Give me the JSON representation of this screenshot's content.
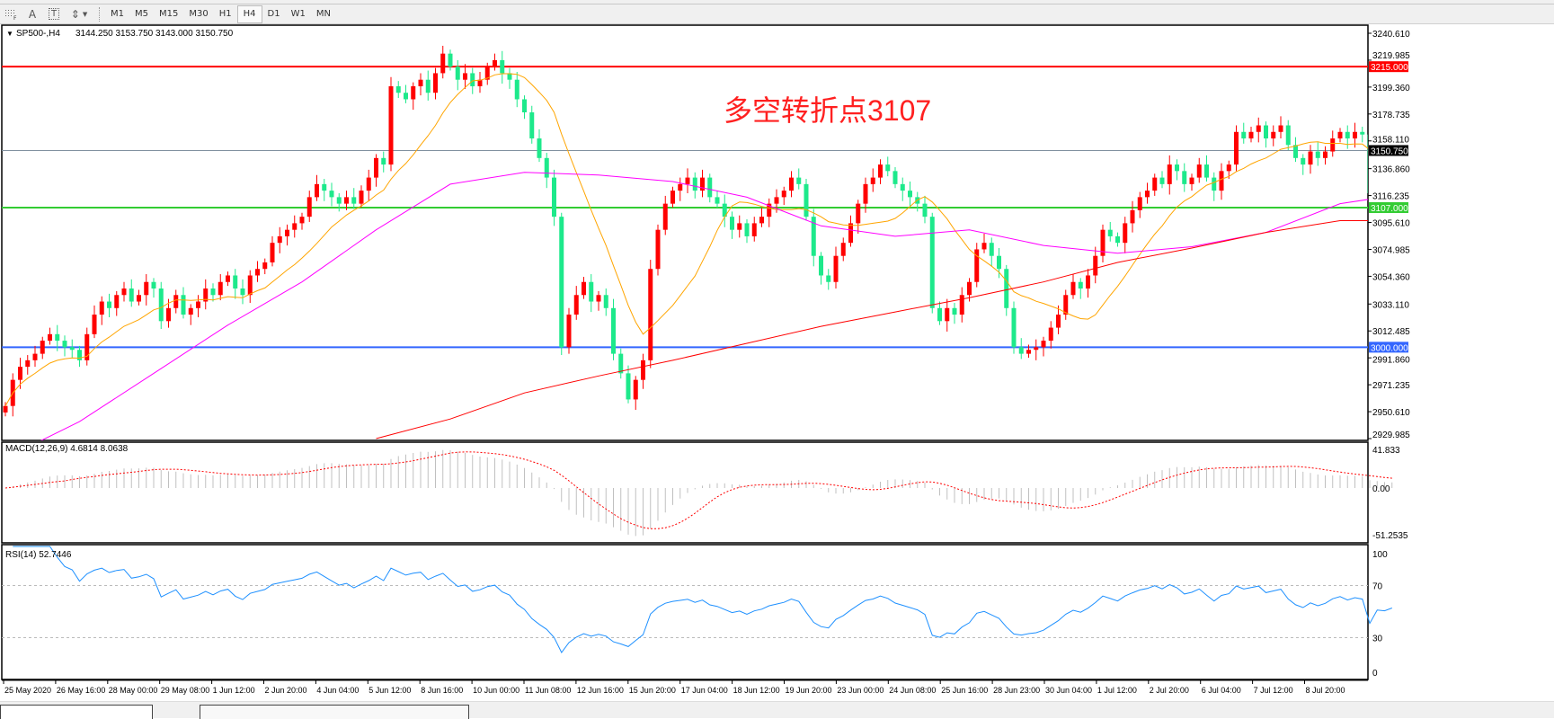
{
  "toolbar": {
    "tools": [
      {
        "icon": "grid-f-icon"
      },
      {
        "icon": "text-a-icon",
        "label": "A"
      },
      {
        "icon": "text-label-icon",
        "label": "T"
      },
      {
        "icon": "arrows-dropdown-icon"
      }
    ],
    "timeframes": [
      "M1",
      "M5",
      "M15",
      "M30",
      "H1",
      "H4",
      "D1",
      "W1",
      "MN"
    ],
    "active_timeframe": "H4"
  },
  "chart_data": {
    "type": "candlestick",
    "title": "SP500-,H4",
    "last_ohlc": {
      "open": 3144.25,
      "high": 3153.75,
      "low": 3143.0,
      "close": 3150.75
    },
    "last_ohlc_text": "3144.250 3153.750 3143.000 3150.750",
    "annotation": "多空转折点3107",
    "up_color": "#ff0000",
    "down_color": "#1de98b",
    "ylim": [
      2929.985,
      3240.61
    ],
    "y_ticks": [
      "3240.610",
      "3219.985",
      "3199.360",
      "3178.735",
      "3158.110",
      "3136.860",
      "3116.235",
      "3095.610",
      "3074.985",
      "3054.360",
      "3033.110",
      "3012.485",
      "2991.860",
      "2971.235",
      "2950.610",
      "2929.985"
    ],
    "x_ticks": [
      "25 May 2020",
      "26 May 16:00",
      "28 May 00:00",
      "29 May 08:00",
      "1 Jun 12:00",
      "2 Jun 20:00",
      "4 Jun 04:00",
      "5 Jun 12:00",
      "8 Jun 16:00",
      "10 Jun 00:00",
      "11 Jun 08:00",
      "12 Jun 16:00",
      "15 Jun 20:00",
      "17 Jun 04:00",
      "18 Jun 12:00",
      "19 Jun 20:00",
      "23 Jun 00:00",
      "24 Jun 08:00",
      "25 Jun 16:00",
      "28 Jun 23:00",
      "30 Jun 04:00",
      "1 Jul 12:00",
      "2 Jul 20:00",
      "6 Jul 04:00",
      "7 Jul 12:00",
      "8 Jul 20:00"
    ],
    "levels": [
      {
        "value": 3215.0,
        "label": "3215.000",
        "color": "#ff0000"
      },
      {
        "value": 3107.0,
        "label": "3107.000",
        "color": "#33cc33"
      },
      {
        "value": 3000.0,
        "label": "3000.000",
        "color": "#3366ff"
      },
      {
        "value": 3150.75,
        "label": "3150.750",
        "color": "#000000",
        "line": "#8090a0"
      }
    ],
    "close": [
      2955,
      2975,
      2985,
      2990,
      2995,
      3005,
      3010,
      3005,
      3000,
      2998,
      2990,
      3010,
      3025,
      3035,
      3030,
      3040,
      3045,
      3035,
      3040,
      3050,
      3045,
      3020,
      3030,
      3040,
      3025,
      3030,
      3035,
      3045,
      3040,
      3050,
      3055,
      3045,
      3040,
      3055,
      3060,
      3065,
      3080,
      3085,
      3090,
      3095,
      3100,
      3115,
      3125,
      3120,
      3115,
      3110,
      3115,
      3110,
      3120,
      3130,
      3145,
      3140,
      3200,
      3195,
      3190,
      3200,
      3205,
      3195,
      3210,
      3225,
      3215,
      3205,
      3210,
      3200,
      3205,
      3215,
      3220,
      3210,
      3205,
      3190,
      3180,
      3160,
      3145,
      3130,
      3100,
      3000,
      3025,
      3040,
      3050,
      3035,
      3040,
      3030,
      2995,
      2980,
      2960,
      2975,
      2990,
      3060,
      3090,
      3110,
      3120,
      3125,
      3130,
      3120,
      3130,
      3115,
      3110,
      3100,
      3090,
      3095,
      3085,
      3095,
      3100,
      3110,
      3115,
      3120,
      3130,
      3125,
      3100,
      3070,
      3055,
      3050,
      3070,
      3080,
      3095,
      3110,
      3125,
      3130,
      3140,
      3135,
      3125,
      3120,
      3115,
      3110,
      3100,
      3030,
      3020,
      3030,
      3025,
      3040,
      3050,
      3075,
      3080,
      3070,
      3060,
      3030,
      3000,
      2995,
      2998,
      3000,
      3005,
      3015,
      3025,
      3040,
      3050,
      3045,
      3055,
      3070,
      3090,
      3085,
      3080,
      3095,
      3105,
      3115,
      3120,
      3130,
      3125,
      3140,
      3135,
      3125,
      3130,
      3140,
      3130,
      3120,
      3135,
      3140,
      3165,
      3160,
      3165,
      3170,
      3160,
      3165,
      3170,
      3155,
      3145,
      3140,
      3150,
      3145,
      3150,
      3160,
      3165,
      3160,
      3165,
      3163,
      3118,
      3146,
      3144.25,
      3150.75
    ],
    "ma_orange_color": "#ffa500",
    "ma_magenta": {
      "color": "#ff00ff",
      "every_10_bars": [
        2915,
        2943,
        2980,
        3017,
        3050,
        3090,
        3125,
        3134,
        3132,
        3127,
        3115,
        3093,
        3085,
        3090,
        3078,
        3072,
        3077,
        3088,
        3110
      ],
      "last": 3116
    },
    "ma_red": {
      "color": "#ff0000",
      "start_bar": 50,
      "every_10_bars": [
        2930,
        2945,
        2965,
        2978,
        2990,
        3003,
        3016,
        3027,
        3038,
        3050,
        3065,
        3076,
        3088,
        3097
      ]
    },
    "macd": {
      "label": "MACD(12,26,9) 4.6814 8.0638",
      "ticks": [
        "41.833",
        "0.00",
        "-51.2535"
      ],
      "ylim": [
        -51.2535,
        41.833
      ]
    },
    "rsi": {
      "label": "RSI(14) 52.7446",
      "ticks": [
        "100",
        "70",
        "30",
        "0"
      ],
      "levels": [
        70,
        30
      ],
      "color": "#1e90ff"
    }
  }
}
